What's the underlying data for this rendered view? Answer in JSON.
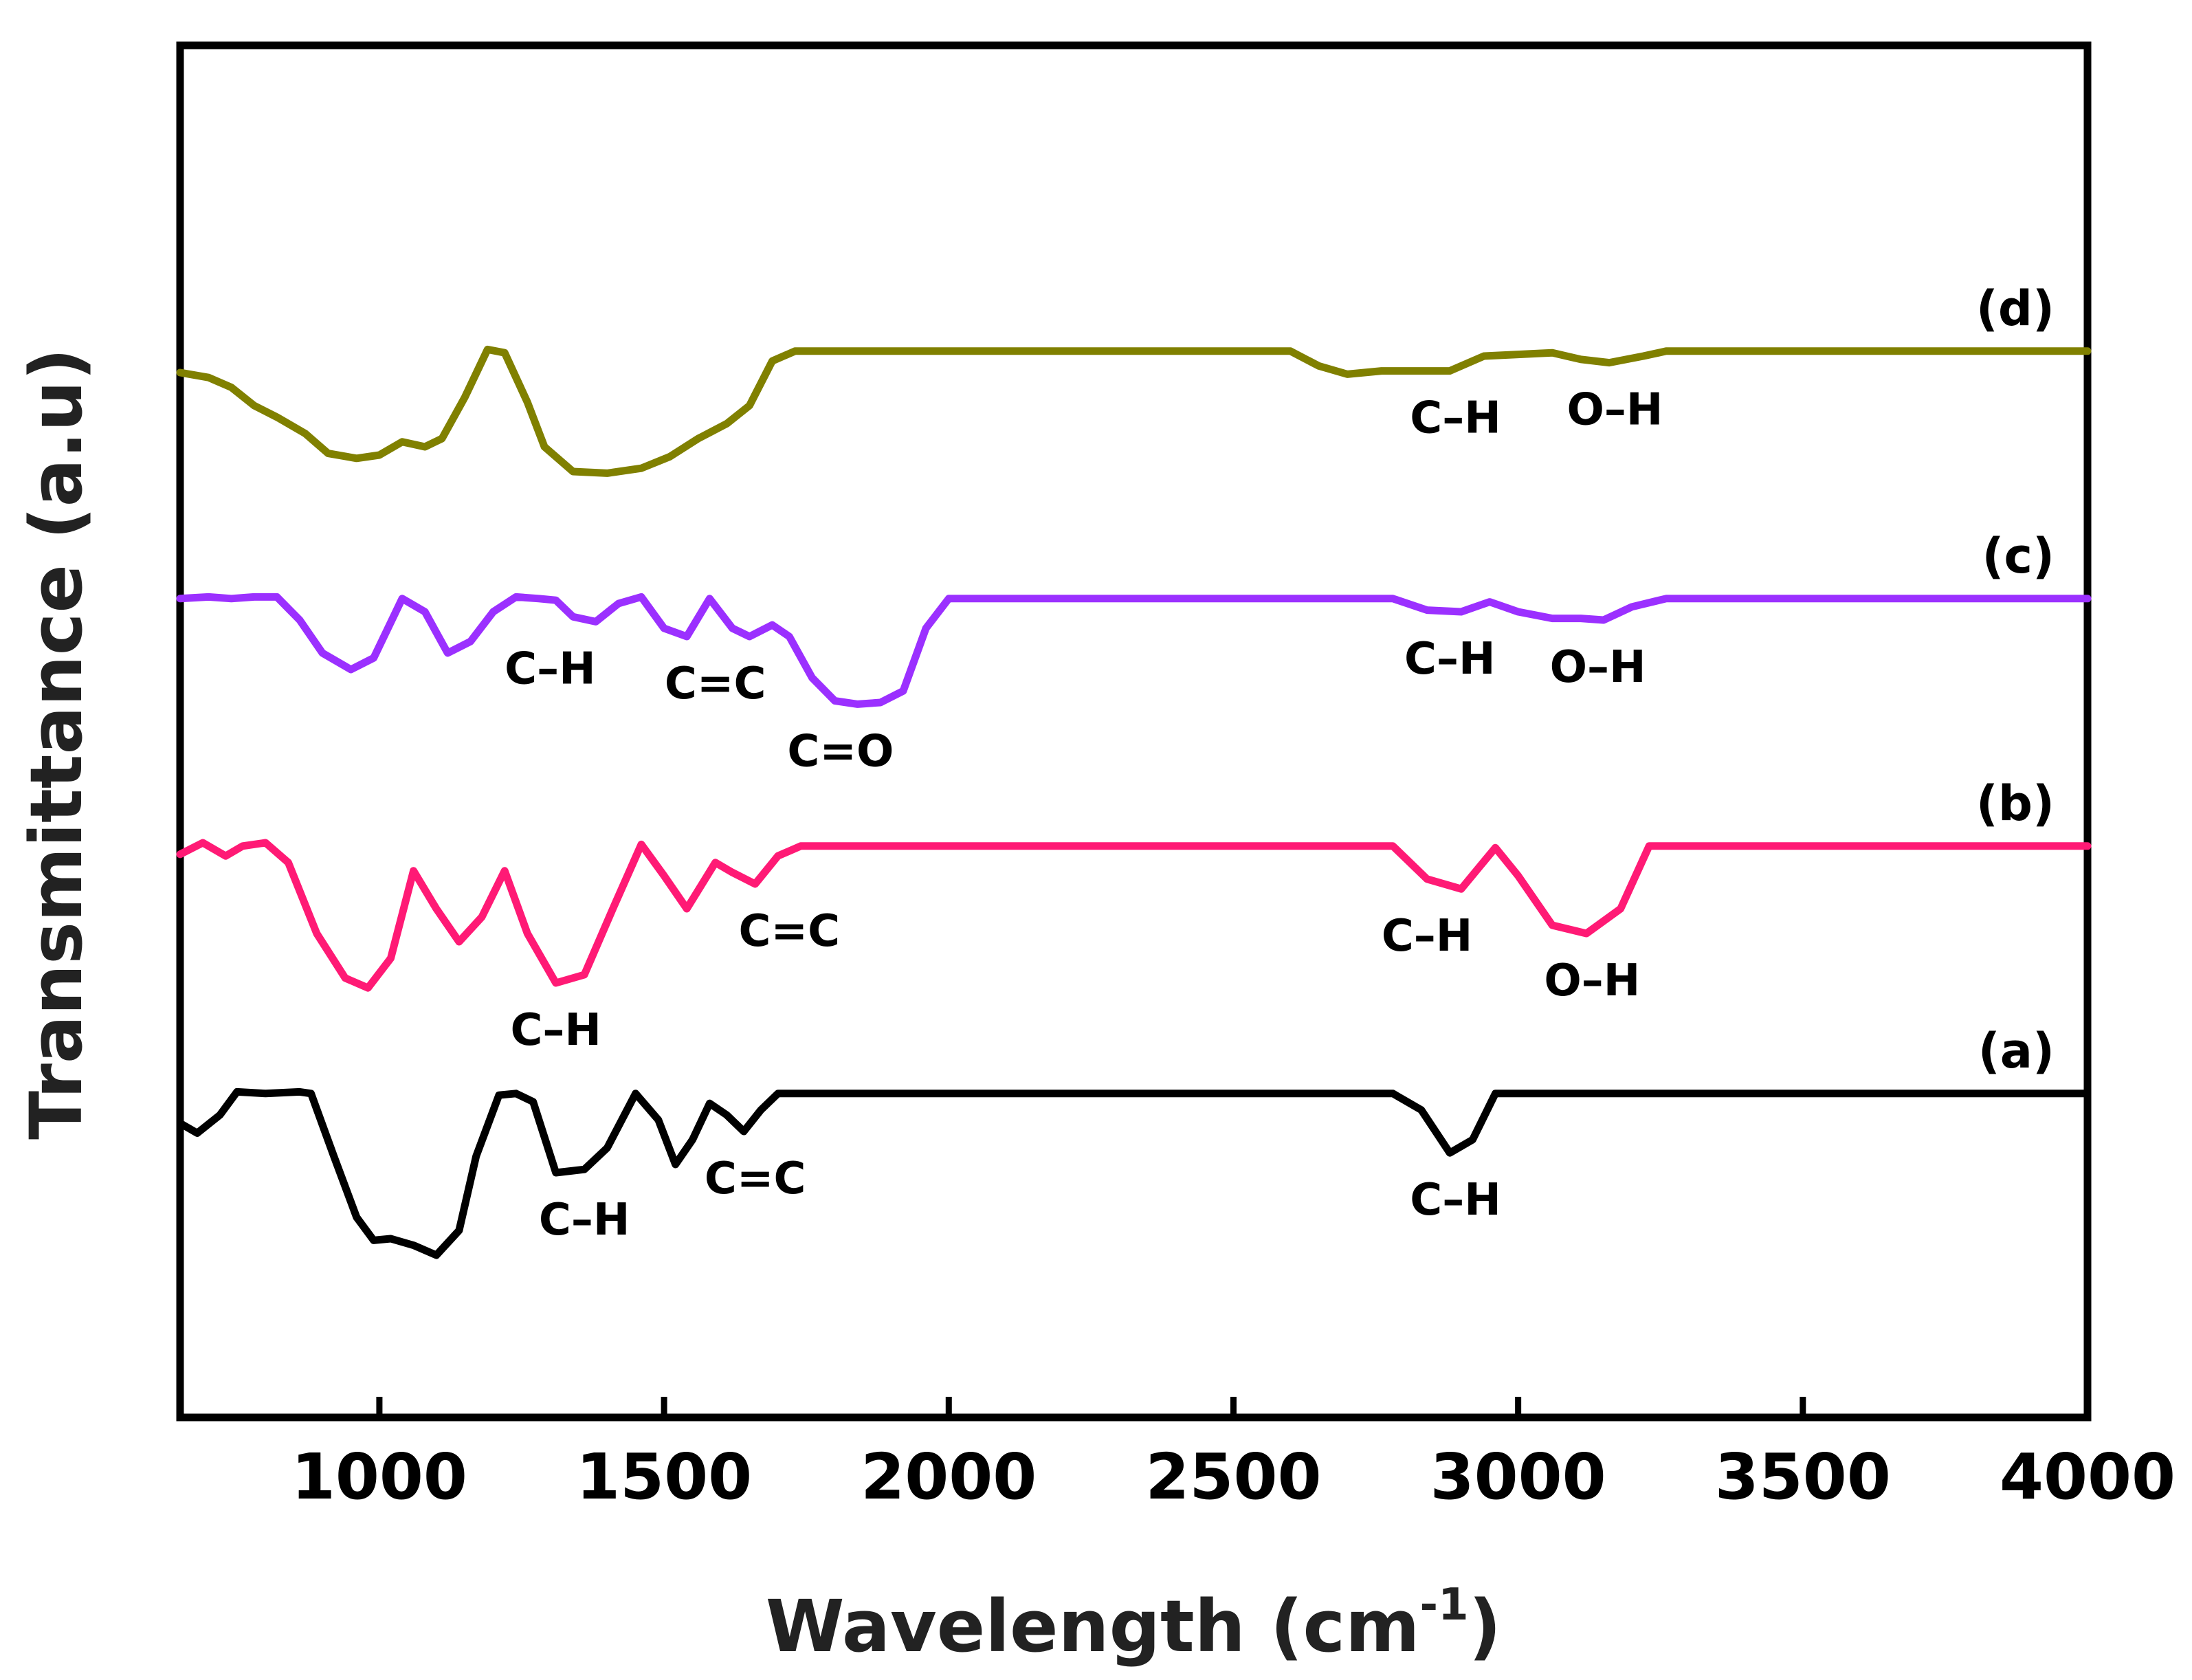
{
  "chart_data": {
    "type": "line",
    "title": "",
    "xlabel": "Wavelength (cm",
    "xlabel_sup": "-1",
    "xlabel_close": ")",
    "ylabel": "Transmittance (a.u)",
    "xlim": [
      650,
      4000
    ],
    "xticks": [
      {
        "value": 1000,
        "label": "1000"
      },
      {
        "value": 1500,
        "label": "1500"
      },
      {
        "value": 2000,
        "label": "2000"
      },
      {
        "value": 2500,
        "label": "2500"
      },
      {
        "value": 3000,
        "label": "3000"
      },
      {
        "value": 3500,
        "label": "3500"
      },
      {
        "value": 4000,
        "label": "4000"
      }
    ],
    "grid": false,
    "y_units": "arbitrary units (higher = more transmittance); curves vertically offset",
    "series": [
      {
        "name": "(a)",
        "color": "#000000",
        "offset": 0.9,
        "points": [
          [
            650,
            0.8
          ],
          [
            680,
            0.74
          ],
          [
            720,
            0.85
          ],
          [
            750,
            0.99
          ],
          [
            800,
            0.98
          ],
          [
            860,
            0.99
          ],
          [
            880,
            0.98
          ],
          [
            920,
            0.6
          ],
          [
            960,
            0.23
          ],
          [
            990,
            0.09
          ],
          [
            1020,
            0.1
          ],
          [
            1060,
            0.06
          ],
          [
            1100,
            0.0
          ],
          [
            1140,
            0.15
          ],
          [
            1170,
            0.6
          ],
          [
            1210,
            0.97
          ],
          [
            1240,
            0.98
          ],
          [
            1270,
            0.93
          ],
          [
            1310,
            0.5
          ],
          [
            1360,
            0.52
          ],
          [
            1400,
            0.65
          ],
          [
            1450,
            0.98
          ],
          [
            1490,
            0.82
          ],
          [
            1520,
            0.55
          ],
          [
            1550,
            0.7
          ],
          [
            1580,
            0.92
          ],
          [
            1610,
            0.85
          ],
          [
            1640,
            0.75
          ],
          [
            1670,
            0.88
          ],
          [
            1700,
            0.98
          ],
          [
            1710,
            0.98
          ],
          [
            2780,
            0.98
          ],
          [
            2830,
            0.88
          ],
          [
            2880,
            0.62
          ],
          [
            2920,
            0.7
          ],
          [
            2960,
            0.98
          ],
          [
            4000,
            0.98
          ]
        ]
      },
      {
        "name": "(b)",
        "color": "#ff1a75",
        "offset": 2.4,
        "points": [
          [
            650,
            0.93
          ],
          [
            690,
            1.0
          ],
          [
            730,
            0.92
          ],
          [
            760,
            0.98
          ],
          [
            800,
            1.0
          ],
          [
            840,
            0.88
          ],
          [
            890,
            0.45
          ],
          [
            940,
            0.18
          ],
          [
            980,
            0.12
          ],
          [
            1020,
            0.3
          ],
          [
            1060,
            0.83
          ],
          [
            1100,
            0.6
          ],
          [
            1140,
            0.4
          ],
          [
            1180,
            0.55
          ],
          [
            1220,
            0.83
          ],
          [
            1260,
            0.45
          ],
          [
            1310,
            0.15
          ],
          [
            1360,
            0.2
          ],
          [
            1410,
            0.6
          ],
          [
            1460,
            0.99
          ],
          [
            1500,
            0.8
          ],
          [
            1540,
            0.6
          ],
          [
            1590,
            0.88
          ],
          [
            1620,
            0.82
          ],
          [
            1660,
            0.75
          ],
          [
            1700,
            0.92
          ],
          [
            1740,
            0.98
          ],
          [
            2780,
            0.98
          ],
          [
            2840,
            0.78
          ],
          [
            2900,
            0.72
          ],
          [
            2960,
            0.97
          ],
          [
            3000,
            0.8
          ],
          [
            3060,
            0.5
          ],
          [
            3120,
            0.45
          ],
          [
            3180,
            0.6
          ],
          [
            3230,
            0.98
          ],
          [
            4000,
            0.98
          ]
        ]
      },
      {
        "name": "(c)",
        "color": "#9b30ff",
        "offset": 3.9,
        "points": [
          [
            650,
            0.98
          ],
          [
            700,
            0.99
          ],
          [
            740,
            0.98
          ],
          [
            780,
            0.99
          ],
          [
            820,
            0.99
          ],
          [
            860,
            0.85
          ],
          [
            900,
            0.65
          ],
          [
            950,
            0.55
          ],
          [
            990,
            0.62
          ],
          [
            1040,
            0.98
          ],
          [
            1080,
            0.9
          ],
          [
            1120,
            0.65
          ],
          [
            1160,
            0.72
          ],
          [
            1200,
            0.9
          ],
          [
            1240,
            0.99
          ],
          [
            1280,
            0.98
          ],
          [
            1310,
            0.97
          ],
          [
            1340,
            0.87
          ],
          [
            1380,
            0.84
          ],
          [
            1420,
            0.95
          ],
          [
            1460,
            0.99
          ],
          [
            1500,
            0.8
          ],
          [
            1540,
            0.75
          ],
          [
            1580,
            0.98
          ],
          [
            1620,
            0.8
          ],
          [
            1650,
            0.75
          ],
          [
            1690,
            0.82
          ],
          [
            1720,
            0.75
          ],
          [
            1760,
            0.5
          ],
          [
            1800,
            0.36
          ],
          [
            1840,
            0.34
          ],
          [
            1880,
            0.35
          ],
          [
            1920,
            0.42
          ],
          [
            1960,
            0.8
          ],
          [
            2000,
            0.98
          ],
          [
            2780,
            0.98
          ],
          [
            2840,
            0.91
          ],
          [
            2900,
            0.9
          ],
          [
            2950,
            0.96
          ],
          [
            3000,
            0.9
          ],
          [
            3060,
            0.86
          ],
          [
            3110,
            0.86
          ],
          [
            3150,
            0.85
          ],
          [
            3200,
            0.93
          ],
          [
            3260,
            0.98
          ],
          [
            4000,
            0.98
          ]
        ]
      },
      {
        "name": "(d)",
        "color": "#808000",
        "offset": 5.4,
        "points": [
          [
            650,
            0.85
          ],
          [
            700,
            0.82
          ],
          [
            740,
            0.76
          ],
          [
            780,
            0.65
          ],
          [
            820,
            0.58
          ],
          [
            870,
            0.48
          ],
          [
            910,
            0.36
          ],
          [
            960,
            0.33
          ],
          [
            1000,
            0.35
          ],
          [
            1040,
            0.43
          ],
          [
            1080,
            0.4
          ],
          [
            1110,
            0.45
          ],
          [
            1150,
            0.7
          ],
          [
            1190,
            0.99
          ],
          [
            1220,
            0.97
          ],
          [
            1260,
            0.67
          ],
          [
            1290,
            0.4
          ],
          [
            1340,
            0.25
          ],
          [
            1400,
            0.24
          ],
          [
            1460,
            0.27
          ],
          [
            1510,
            0.34
          ],
          [
            1560,
            0.45
          ],
          [
            1610,
            0.54
          ],
          [
            1650,
            0.65
          ],
          [
            1690,
            0.92
          ],
          [
            1730,
            0.98
          ],
          [
            2600,
            0.98
          ],
          [
            2650,
            0.89
          ],
          [
            2700,
            0.84
          ],
          [
            2760,
            0.86
          ],
          [
            2820,
            0.86
          ],
          [
            2880,
            0.86
          ],
          [
            2940,
            0.95
          ],
          [
            3000,
            0.96
          ],
          [
            3060,
            0.97
          ],
          [
            3110,
            0.93
          ],
          [
            3160,
            0.91
          ],
          [
            3220,
            0.95
          ],
          [
            3260,
            0.98
          ],
          [
            4000,
            0.98
          ]
        ]
      }
    ],
    "series_labels": [
      {
        "series": "(a)",
        "text": "(a)"
      },
      {
        "series": "(b)",
        "text": "(b)"
      },
      {
        "series": "(c)",
        "text": "(c)"
      },
      {
        "series": "(d)",
        "text": "(d)"
      }
    ],
    "annotations": [
      {
        "series": "(a)",
        "text": "C–H",
        "x": 1360
      },
      {
        "series": "(a)",
        "text": "C=C",
        "x": 1660
      },
      {
        "series": "(a)",
        "text": "C–H",
        "x": 2890
      },
      {
        "series": "(b)",
        "text": "C–H",
        "x": 1310
      },
      {
        "series": "(b)",
        "text": "C=C",
        "x": 1720
      },
      {
        "series": "(b)",
        "text": "C–H",
        "x": 2840
      },
      {
        "series": "(b)",
        "text": "O–H",
        "x": 3130
      },
      {
        "series": "(c)",
        "text": "C–H",
        "x": 1300
      },
      {
        "series": "(c)",
        "text": "C=C",
        "x": 1590
      },
      {
        "series": "(c)",
        "text": "C=O",
        "x": 1810
      },
      {
        "series": "(c)",
        "text": "C–H",
        "x": 2880
      },
      {
        "series": "(c)",
        "text": "O–H",
        "x": 3140
      },
      {
        "series": "(d)",
        "text": "C–H",
        "x": 2890
      },
      {
        "series": "(d)",
        "text": "O–H",
        "x": 3170
      }
    ]
  }
}
